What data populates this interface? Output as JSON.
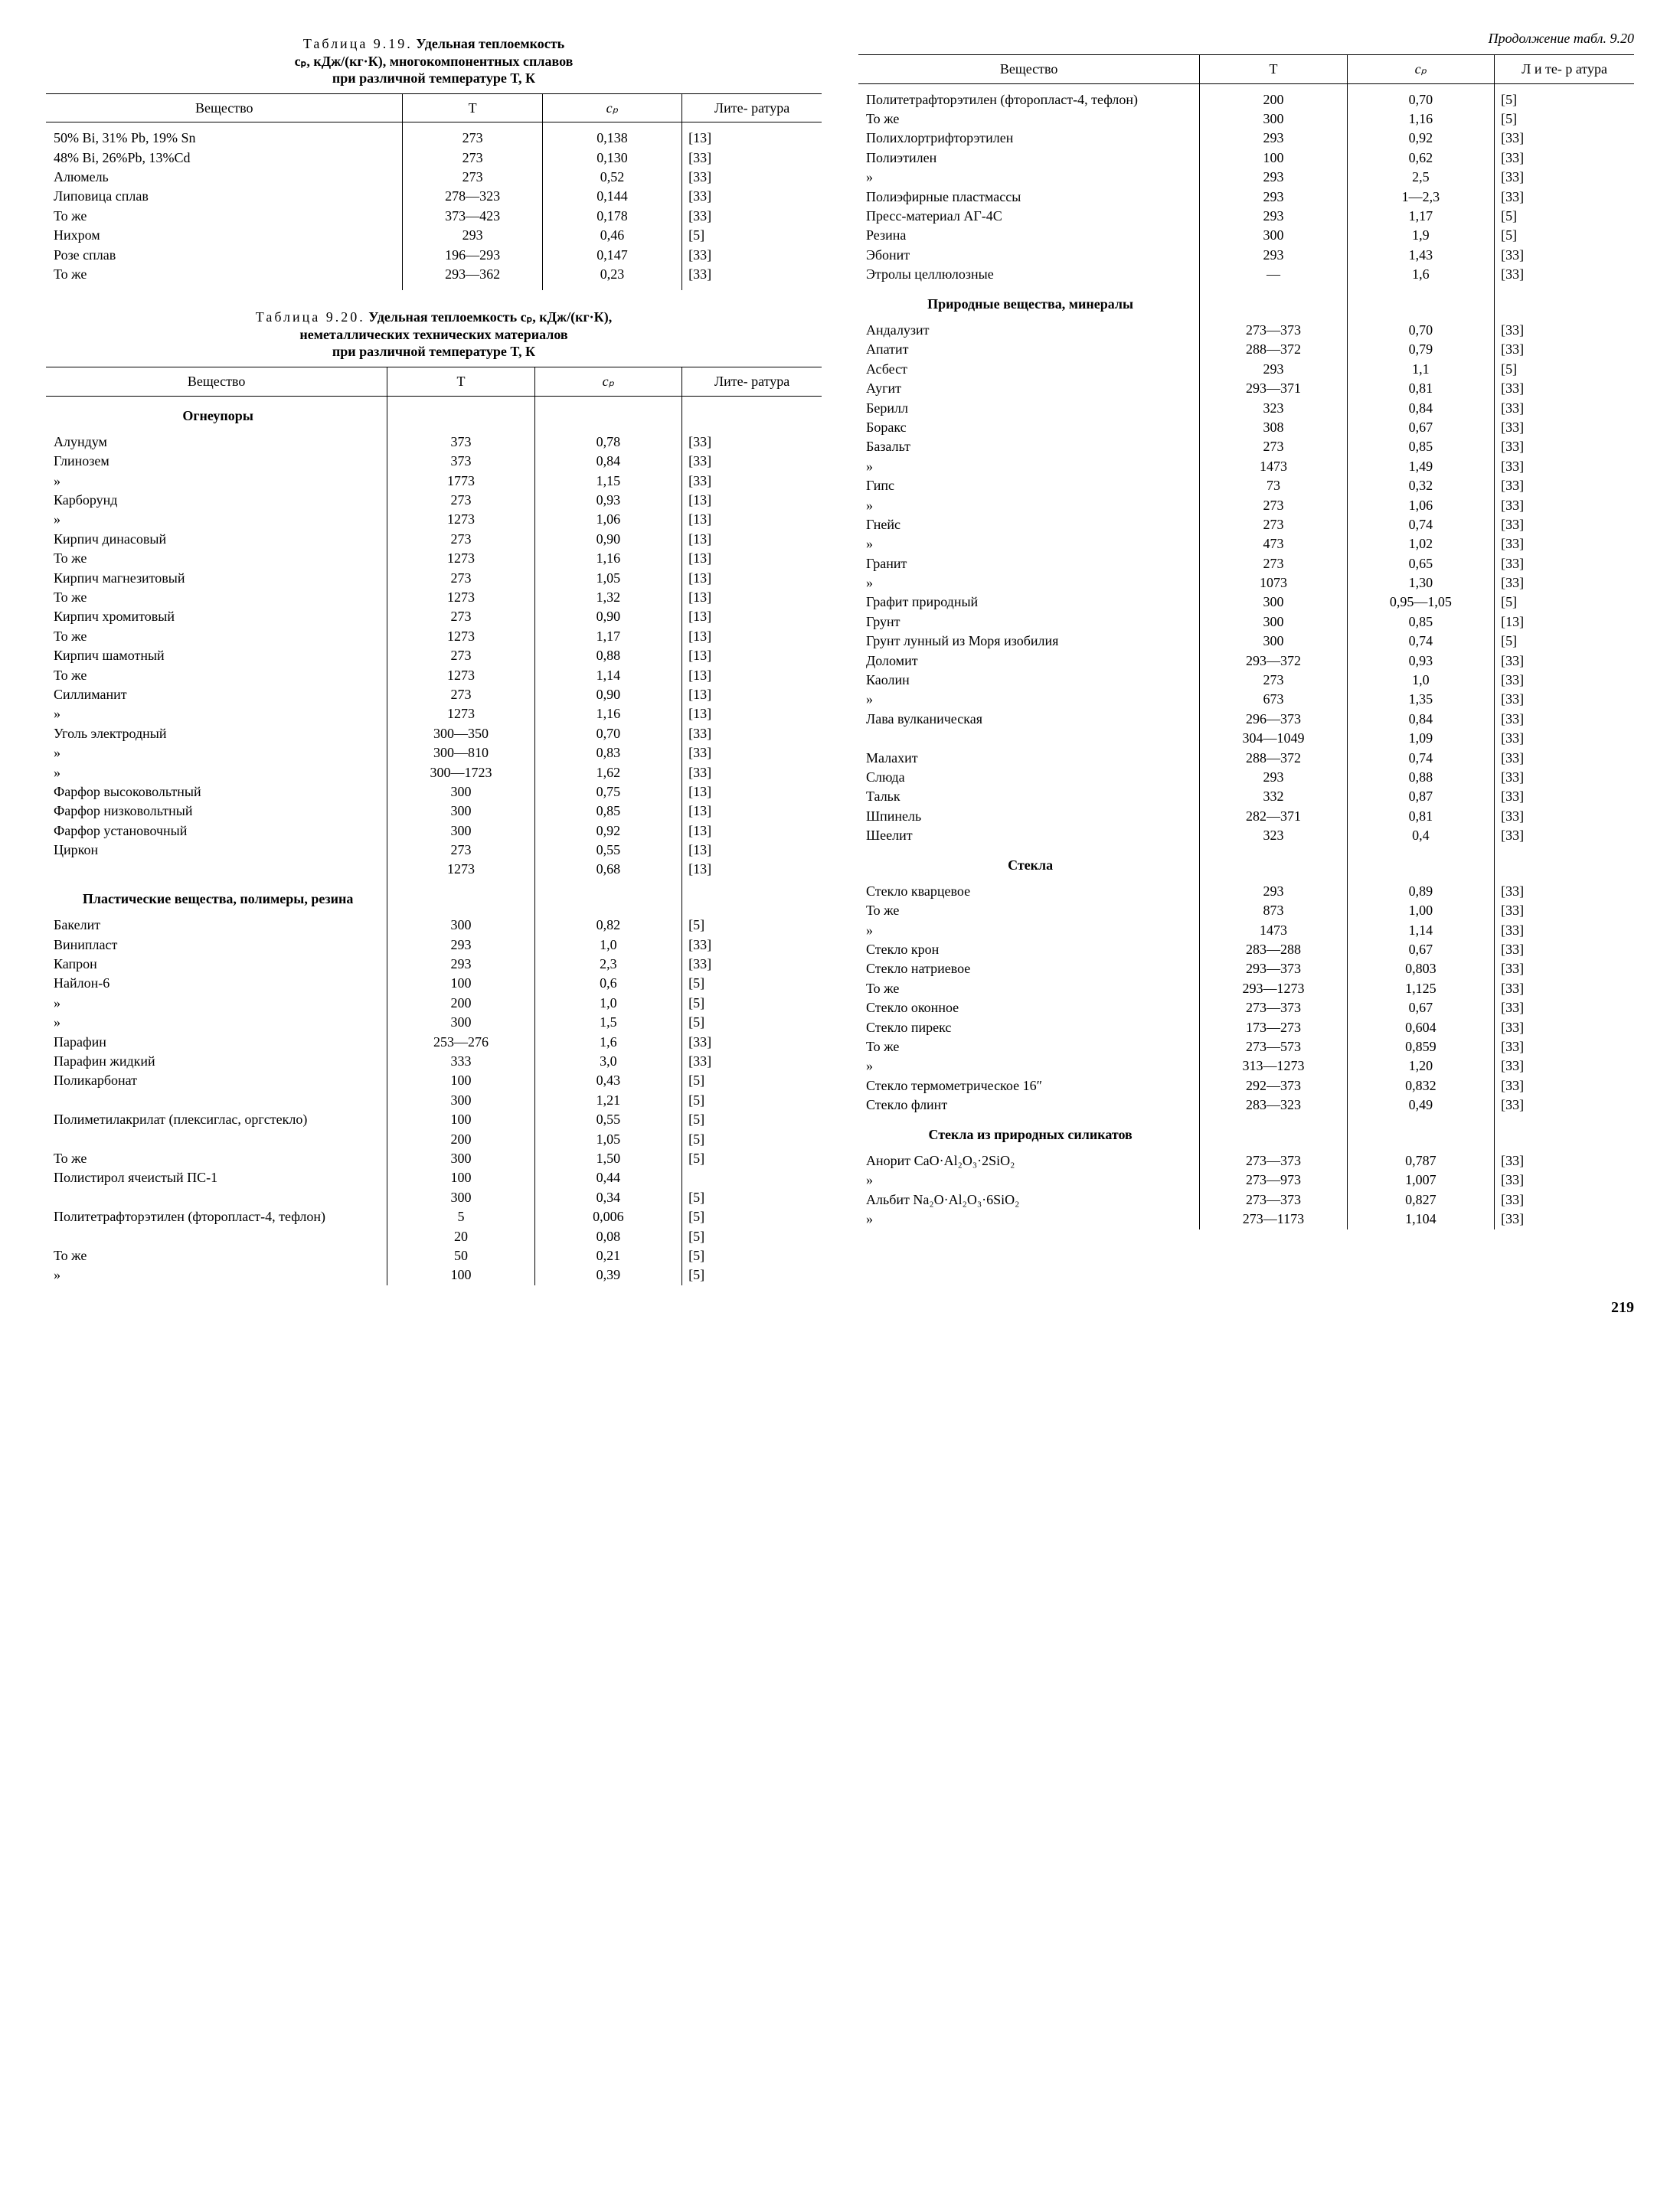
{
  "page_number": "219",
  "left": {
    "table919": {
      "caption_prefix": "Таблица 9.19.",
      "caption_line1_rest": "Удельная теплоемкость",
      "caption_line2": "cₚ, кДж/(кг·К), многокомпонентных сплавов",
      "caption_line3": "при различной температуре T, К",
      "headers": [
        "Вещество",
        "T",
        "cₚ",
        "Лите-\nратура"
      ],
      "rows": [
        {
          "name": "50% Bi,  31% Pb,  19% Sn",
          "t": "273",
          "cp": "0,138",
          "ref": "[13]"
        },
        {
          "name": "48% Bi,  26%Pb,  13%Cd",
          "t": "273",
          "cp": "0,130",
          "ref": "[33]"
        },
        {
          "name": "Алюмель",
          "t": "273",
          "cp": "0,52",
          "ref": "[33]"
        },
        {
          "name": "Липовица сплав",
          "t": "278—323",
          "cp": "0,144",
          "ref": "[33]"
        },
        {
          "name": "То же",
          "t": "373—423",
          "cp": "0,178",
          "ref": "[33]"
        },
        {
          "name": "Нихром",
          "t": "293",
          "cp": "0,46",
          "ref": "[5]"
        },
        {
          "name": "Розе сплав",
          "t": "196—293",
          "cp": "0,147",
          "ref": "[33]"
        },
        {
          "name": "То же",
          "t": "293—362",
          "cp": "0,23",
          "ref": "[33]"
        }
      ]
    },
    "table920": {
      "caption_prefix": "Таблица 9.20.",
      "caption_line1_rest": "Удельная теплоемкость cₚ, кДж/(кг·К),",
      "caption_line2": "неметаллических технических материалов",
      "caption_line3": "при различной температуре T, К",
      "headers": [
        "Вещество",
        "T",
        "cₚ",
        "Лите-\nратура"
      ],
      "sections": [
        {
          "title": "Огнеупоры",
          "rows": [
            {
              "name": "Алундум",
              "t": "373",
              "cp": "0,78",
              "ref": "[33]"
            },
            {
              "name": "Глинозем",
              "t": "373",
              "cp": "0,84",
              "ref": "[33]"
            },
            {
              "name": "»",
              "indent": true,
              "t": "1773",
              "cp": "1,15",
              "ref": "[33]"
            },
            {
              "name": "Карборунд",
              "t": "273",
              "cp": "0,93",
              "ref": "[13]"
            },
            {
              "name": "»",
              "indent": true,
              "t": "1273",
              "cp": "1,06",
              "ref": "[13]"
            },
            {
              "name": "Кирпич динасовый",
              "t": "273",
              "cp": "0,90",
              "ref": "[13]"
            },
            {
              "name": "То же",
              "t": "1273",
              "cp": "1,16",
              "ref": "[13]"
            },
            {
              "name": "Кирпич магнезитовый",
              "t": "273",
              "cp": "1,05",
              "ref": "[13]"
            },
            {
              "name": "То же",
              "t": "1273",
              "cp": "1,32",
              "ref": "[13]"
            },
            {
              "name": "Кирпич хромитовый",
              "t": "273",
              "cp": "0,90",
              "ref": "[13]"
            },
            {
              "name": "То же",
              "t": "1273",
              "cp": "1,17",
              "ref": "[13]"
            },
            {
              "name": "Кирпич шамотный",
              "t": "273",
              "cp": "0,88",
              "ref": "[13]"
            },
            {
              "name": "То же",
              "t": "1273",
              "cp": "1,14",
              "ref": "[13]"
            },
            {
              "name": "Силлиманит",
              "t": "273",
              "cp": "0,90",
              "ref": "[13]"
            },
            {
              "name": "»",
              "indent": true,
              "t": "1273",
              "cp": "1,16",
              "ref": "[13]"
            },
            {
              "name": "Уголь электродный",
              "t": "300—350",
              "cp": "0,70",
              "ref": "[33]"
            },
            {
              "name": "»",
              "indent": true,
              "t": "300—810",
              "cp": "0,83",
              "ref": "[33]"
            },
            {
              "name": "»",
              "indent": true,
              "t": "300—1723",
              "cp": "1,62",
              "ref": "[33]"
            },
            {
              "name": "Фарфор высоковольтный",
              "t": "300",
              "cp": "0,75",
              "ref": "[13]"
            },
            {
              "name": "Фарфор низковольтный",
              "t": "300",
              "cp": "0,85",
              "ref": "[13]"
            },
            {
              "name": "Фарфор установочный",
              "t": "300",
              "cp": "0,92",
              "ref": "[13]"
            },
            {
              "name": "Циркон",
              "t": "273",
              "cp": "0,55",
              "ref": "[13]"
            },
            {
              "name": "",
              "t": "1273",
              "cp": "0,68",
              "ref": "[13]"
            }
          ]
        },
        {
          "title": "Пластические вещества, полимеры, резина",
          "rows": [
            {
              "name": "Бакелит",
              "t": "300",
              "cp": "0,82",
              "ref": "[5]"
            },
            {
              "name": "Винипласт",
              "t": "293",
              "cp": "1,0",
              "ref": "[33]"
            },
            {
              "name": "Капрон",
              "t": "293",
              "cp": "2,3",
              "ref": "[33]"
            },
            {
              "name": "Найлон-6",
              "t": "100",
              "cp": "0,6",
              "ref": "[5]"
            },
            {
              "name": "»",
              "indent": true,
              "t": "200",
              "cp": "1,0",
              "ref": "[5]"
            },
            {
              "name": "»",
              "indent": true,
              "t": "300",
              "cp": "1,5",
              "ref": "[5]"
            },
            {
              "name": "Парафин",
              "t": "253—276",
              "cp": "1,6",
              "ref": "[33]"
            },
            {
              "name": "Парафин жидкий",
              "t": "333",
              "cp": "3,0",
              "ref": "[33]"
            },
            {
              "name": "Поликарбонат",
              "t": "100",
              "cp": "0,43",
              "ref": "[5]"
            },
            {
              "name": "",
              "t": "300",
              "cp": "1,21",
              "ref": "[5]"
            },
            {
              "name": "Полиметилакрилат (плексиглас, оргстекло)",
              "t": "100",
              "cp": "0,55",
              "ref": "[5]"
            },
            {
              "name": "",
              "t": "200",
              "cp": "1,05",
              "ref": "[5]"
            },
            {
              "name": "То же",
              "t": "300",
              "cp": "1,50",
              "ref": "[5]"
            },
            {
              "name": "Полистирол ячеистый ПС-1",
              "t": "100",
              "cp": "0,44",
              "ref": ""
            },
            {
              "name": "",
              "t": "300",
              "cp": "0,34",
              "ref": "[5]"
            },
            {
              "name": "Политетрафторэтилен (фторопласт-4, тефлон)",
              "t": "5",
              "cp": "0,006",
              "ref": "[5]"
            },
            {
              "name": "",
              "t": "20",
              "cp": "0,08",
              "ref": "[5]"
            },
            {
              "name": "То же",
              "t": "50",
              "cp": "0,21",
              "ref": "[5]"
            },
            {
              "name": "»",
              "indent": true,
              "t": "100",
              "cp": "0,39",
              "ref": "[5]"
            }
          ]
        }
      ]
    }
  },
  "right": {
    "continuation": "Продолжение табл. 9.20",
    "headers": [
      "Вещество",
      "T",
      "cₚ",
      "Л и те-\nр атура"
    ],
    "groups": [
      {
        "rows": [
          {
            "name": "Политетрафторэтилен (фторопласт-4, тефлон)",
            "t": "200",
            "cp": "0,70",
            "ref": "[5]"
          },
          {
            "name": "То же",
            "t": "300",
            "cp": "1,16",
            "ref": "[5]"
          },
          {
            "name": "Полихлортрифторэтилен",
            "t": "293",
            "cp": "0,92",
            "ref": "[33]"
          },
          {
            "name": "Полиэтилен",
            "t": "100",
            "cp": "0,62",
            "ref": "[33]"
          },
          {
            "name": "»",
            "indent": true,
            "t": "293",
            "cp": "2,5",
            "ref": "[33]"
          },
          {
            "name": "Полиэфирные пластмассы",
            "t": "293",
            "cp": "1—2,3",
            "ref": "[33]"
          },
          {
            "name": "Пресс-материал АГ-4С",
            "t": "293",
            "cp": "1,17",
            "ref": "[5]"
          },
          {
            "name": "Резина",
            "t": "300",
            "cp": "1,9",
            "ref": "[5]"
          },
          {
            "name": "Эбонит",
            "t": "293",
            "cp": "1,43",
            "ref": "[33]"
          },
          {
            "name": "Этролы целлюлозные",
            "t": "—",
            "cp": "1,6",
            "ref": "[33]"
          }
        ]
      },
      {
        "title": "Природные вещества, минералы",
        "rows": [
          {
            "name": "Андалузит",
            "t": "273—373",
            "cp": "0,70",
            "ref": "[33]"
          },
          {
            "name": "Апатит",
            "t": "288—372",
            "cp": "0,79",
            "ref": "[33]"
          },
          {
            "name": "Асбест",
            "t": "293",
            "cp": "1,1",
            "ref": "[5]"
          },
          {
            "name": "Аугит",
            "t": "293—371",
            "cp": "0,81",
            "ref": "[33]"
          },
          {
            "name": "Берилл",
            "t": "323",
            "cp": "0,84",
            "ref": "[33]"
          },
          {
            "name": "Боракс",
            "t": "308",
            "cp": "0,67",
            "ref": "[33]"
          },
          {
            "name": "Базальт",
            "t": "273",
            "cp": "0,85",
            "ref": "[33]"
          },
          {
            "name": "»",
            "indent": true,
            "t": "1473",
            "cp": "1,49",
            "ref": "[33]"
          },
          {
            "name": "Гипс",
            "t": "73",
            "cp": "0,32",
            "ref": "[33]"
          },
          {
            "name": "»",
            "indent": true,
            "t": "273",
            "cp": "1,06",
            "ref": "[33]"
          },
          {
            "name": "Гнейс",
            "t": "273",
            "cp": "0,74",
            "ref": "[33]"
          },
          {
            "name": "»",
            "indent": true,
            "t": "473",
            "cp": "1,02",
            "ref": "[33]"
          },
          {
            "name": "Гранит",
            "t": "273",
            "cp": "0,65",
            "ref": "[33]"
          },
          {
            "name": "»",
            "indent": true,
            "t": "1073",
            "cp": "1,30",
            "ref": "[33]"
          },
          {
            "name": "Графит природный",
            "t": "300",
            "cp": "0,95—1,05",
            "ref": "[5]"
          },
          {
            "name": "Грунт",
            "t": "300",
            "cp": "0,85",
            "ref": "[13]"
          },
          {
            "name": "Грунт лунный из Моря изобилия",
            "t": "300",
            "cp": "0,74",
            "ref": "[5]"
          },
          {
            "name": "Доломит",
            "t": "293—372",
            "cp": "0,93",
            "ref": "[33]"
          },
          {
            "name": "Каолин",
            "t": "273",
            "cp": "1,0",
            "ref": "[33]"
          },
          {
            "name": "»",
            "indent": true,
            "t": "673",
            "cp": "1,35",
            "ref": "[33]"
          },
          {
            "name": "Лава вулканическая",
            "t": "296—373",
            "cp": "0,84",
            "ref": "[33]"
          },
          {
            "name": "",
            "t": "304—1049",
            "cp": "1,09",
            "ref": "[33]"
          },
          {
            "name": "Малахит",
            "t": "288—372",
            "cp": "0,74",
            "ref": "[33]"
          },
          {
            "name": "Слюда",
            "t": "293",
            "cp": "0,88",
            "ref": "[33]"
          },
          {
            "name": "Тальк",
            "t": "332",
            "cp": "0,87",
            "ref": "[33]"
          },
          {
            "name": "Шпинель",
            "t": "282—371",
            "cp": "0,81",
            "ref": "[33]"
          },
          {
            "name": "Шеелит",
            "t": "323",
            "cp": "0,4",
            "ref": "[33]"
          }
        ]
      },
      {
        "title": "Стекла",
        "rows": [
          {
            "name": "Стекло кварцевое",
            "t": "293",
            "cp": "0,89",
            "ref": "[33]"
          },
          {
            "name": "То же",
            "t": "873",
            "cp": "1,00",
            "ref": "[33]"
          },
          {
            "name": "»",
            "indent": true,
            "t": "1473",
            "cp": "1,14",
            "ref": "[33]"
          },
          {
            "name": "Стекло крон",
            "t": "283—288",
            "cp": "0,67",
            "ref": "[33]"
          },
          {
            "name": "Стекло натриевое",
            "t": "293—373",
            "cp": "0,803",
            "ref": "[33]"
          },
          {
            "name": "То же",
            "t": "293—1273",
            "cp": "1,125",
            "ref": "[33]"
          },
          {
            "name": "Стекло оконное",
            "t": "273—373",
            "cp": "0,67",
            "ref": "[33]"
          },
          {
            "name": "Стекло пирекс",
            "t": "173—273",
            "cp": "0,604",
            "ref": "[33]"
          },
          {
            "name": "То же",
            "t": "273—573",
            "cp": "0,859",
            "ref": "[33]"
          },
          {
            "name": "»",
            "indent": true,
            "t": "313—1273",
            "cp": "1,20",
            "ref": "[33]"
          },
          {
            "name": "Стекло термометрическое 16″",
            "t": "292—373",
            "cp": "0,832",
            "ref": "[33]"
          },
          {
            "name": "Стекло флинт",
            "t": "283—323",
            "cp": "0,49",
            "ref": "[33]"
          }
        ]
      },
      {
        "title": "Стекла из природных силикатов",
        "rows": [
          {
            "name": "Анорит CaO·Al₂O₃·2SiO₂",
            "t": "273—373",
            "cp": "0,787",
            "ref": "[33]"
          },
          {
            "name": "»",
            "indent": true,
            "t": "273—973",
            "cp": "1,007",
            "ref": "[33]"
          },
          {
            "name": "Альбит Na₂O·Al₂O₃·6SiO₂",
            "t": "273—373",
            "cp": "0,827",
            "ref": "[33]"
          },
          {
            "name": "»",
            "indent": true,
            "t": "273—1173",
            "cp": "1,104",
            "ref": "[33]"
          }
        ]
      }
    ]
  }
}
